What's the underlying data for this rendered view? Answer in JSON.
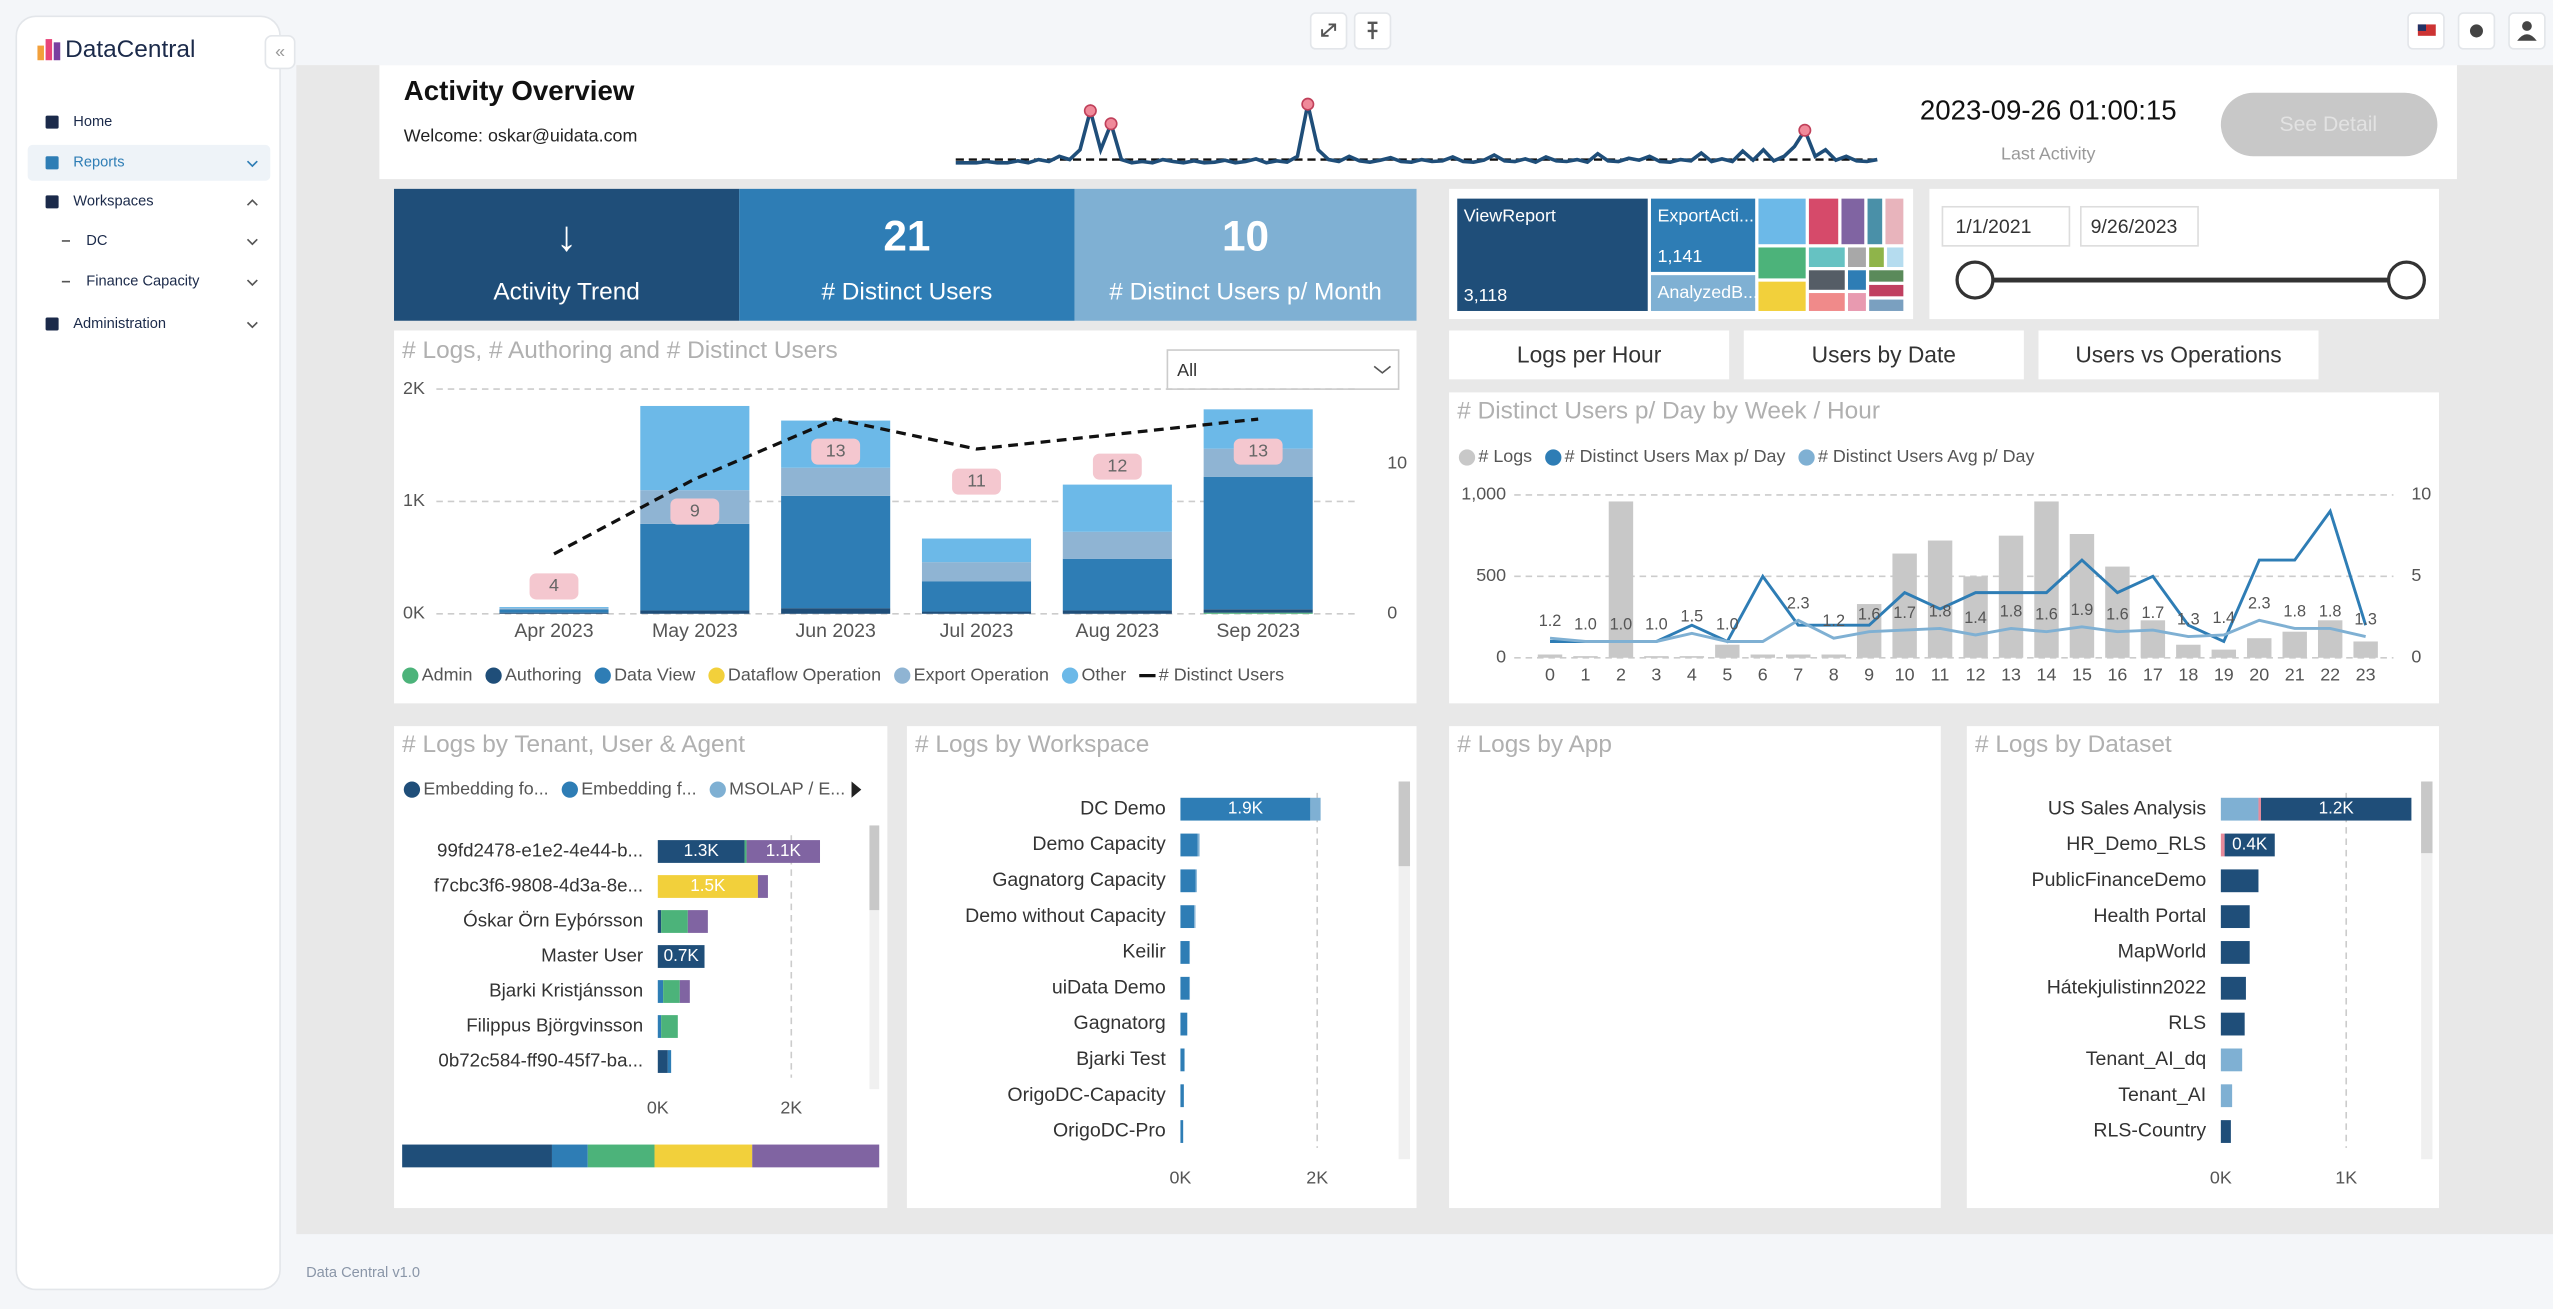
{
  "sidebar": {
    "brand": "DataCentral",
    "nav": [
      "Home",
      "Reports",
      "Workspaces",
      "DC",
      "Finance Capacity",
      "Administration"
    ]
  },
  "footer": "Data Central v1.0",
  "header": {
    "title": "Activity Overview",
    "welcome": "Welcome: oskar@uidata.com",
    "last_activity": "2023-09-26 01:00:15",
    "last_activity_label": "Last Activity",
    "button": "See Detail"
  },
  "activity_sparkline": {
    "type": "line",
    "color": "#1f4e79",
    "values": [
      1,
      1,
      1,
      1.2,
      1,
      1,
      1.3,
      1,
      1.5,
      1.2,
      2,
      1.5,
      3,
      9,
      3,
      7,
      1.5,
      1,
      1.2,
      1,
      1.5,
      1.2,
      1,
      1.3,
      1,
      1.1,
      1.4,
      1,
      1.2,
      1.6,
      1,
      1.3,
      1.1,
      2,
      10,
      3,
      1.5,
      1.2,
      2,
      1.3,
      1.1,
      1.4,
      1.8,
      1.2,
      1.1,
      1.5,
      1.2,
      1.3,
      1.9,
      1.2,
      1.1,
      1.4,
      2.2,
      1.3,
      1.2,
      1.6,
      1.1,
      1.9,
      1.3,
      1.2,
      1.5,
      1.1,
      2.4,
      1.3,
      1.2,
      1.7,
      1.4,
      2,
      1.2,
      1.1,
      1.5,
      1.3,
      2.5,
      1.2,
      1.6,
      1.2,
      2.8,
      1.4,
      3,
      1.3,
      2,
      3.5,
      6,
      2,
      3,
      1.4,
      2,
      1.3,
      1.2,
      1.5
    ]
  },
  "kpis": [
    {
      "value": "↓",
      "label": "Activity Trend"
    },
    {
      "value": 21,
      "label": "# Distinct Users"
    },
    {
      "value": 10,
      "label": "# Distinct Users p/ Month"
    }
  ],
  "treemap": {
    "labels": [
      "ViewReport",
      "ExportActi...",
      "AnalyzedB..."
    ],
    "values": [
      3118,
      1141,
      500
    ],
    "value_labels": [
      "3,118",
      "1,141",
      null
    ]
  },
  "date_slicer": {
    "start": "1/1/2021",
    "end": "9/26/2023"
  },
  "tabs": [
    "Logs per Hour",
    "Users by Date",
    "Users vs Operations"
  ],
  "logs_by_month": {
    "type": "bar",
    "stacked": true,
    "title": "# Logs, # Authoring and # Distinct Users",
    "filter": "All",
    "categories": [
      "Apr 2023",
      "May 2023",
      "Jun 2023",
      "Jul 2023",
      "Aug 2023",
      "Sep 2023"
    ],
    "series": [
      {
        "name": "Admin",
        "color": "#4cb37a",
        "values": [
          0,
          0,
          0,
          0,
          0,
          10
        ]
      },
      {
        "name": "Authoring",
        "color": "#1f4e79",
        "values": [
          10,
          30,
          50,
          20,
          30,
          30
        ]
      },
      {
        "name": "Data View",
        "color": "#2e7db5",
        "values": [
          30,
          770,
          1000,
          270,
          460,
          1180
        ]
      },
      {
        "name": "Dataflow Operation",
        "color": "#f2d03b",
        "values": [
          0,
          0,
          0,
          0,
          0,
          0
        ]
      },
      {
        "name": "Export Operation",
        "color": "#8fb4d3",
        "values": [
          10,
          300,
          250,
          170,
          240,
          250
        ]
      },
      {
        "name": "Other",
        "color": "#6cb9e8",
        "values": [
          10,
          750,
          420,
          210,
          420,
          350
        ]
      },
      {
        "name": "# Distinct Users",
        "color": "#111111",
        "axis": "y2",
        "values": [
          4,
          9,
          13,
          11,
          12,
          13
        ]
      }
    ],
    "ylim": [
      0,
      2000
    ],
    "yticks": [
      {
        "value": 0,
        "label": "0K"
      },
      {
        "value": 1000,
        "label": "1K"
      },
      {
        "value": 2000,
        "label": "2K"
      }
    ],
    "y2lim": [
      0,
      15
    ],
    "y2ticks": [
      0,
      10
    ],
    "grid": true
  },
  "hourly": {
    "type": "bar",
    "title": "# Distinct Users p/ Day by Week / Hour",
    "categories": [
      "0",
      "1",
      "2",
      "3",
      "4",
      "5",
      "6",
      "7",
      "8",
      "9",
      "10",
      "11",
      "12",
      "13",
      "14",
      "15",
      "16",
      "17",
      "18",
      "19",
      "20",
      "21",
      "22",
      "23"
    ],
    "series": [
      {
        "name": "# Logs",
        "color": "#c8c8c8",
        "values": [
          20,
          10,
          960,
          10,
          10,
          80,
          20,
          20,
          20,
          330,
          640,
          720,
          500,
          750,
          960,
          760,
          560,
          230,
          80,
          50,
          120,
          160,
          230,
          100
        ]
      },
      {
        "name": "# Distinct Users Max p/ Day",
        "color": "#2e7db5",
        "axis": "y2",
        "values": [
          1,
          1,
          1,
          1,
          2,
          1,
          5,
          2,
          2,
          2,
          4,
          3,
          4,
          4,
          4,
          6,
          4,
          5,
          2,
          1,
          6,
          6,
          9,
          2
        ]
      },
      {
        "name": "# Distinct Users Avg p/ Day",
        "color": "#7fb0d3",
        "axis": "y2",
        "values": [
          1.2,
          1,
          1,
          1,
          1.5,
          1,
          1,
          2.3,
          1.2,
          1.6,
          1.7,
          1.8,
          1.4,
          1.8,
          1.6,
          1.9,
          1.6,
          1.7,
          1.3,
          1.4,
          2.3,
          1.8,
          1.8,
          1.3
        ],
        "value_labels": [
          "1.2",
          "1.0",
          "1.0",
          "1.0",
          "1.5",
          "1.0",
          null,
          "2.3",
          "1.2",
          "1.6",
          "1.7",
          "1.8",
          "1.4",
          "1.8",
          "1.6",
          "1.9",
          "1.6",
          "1.7",
          "1.3",
          "1.4",
          "2.3",
          "1.8",
          "1.8",
          "1.3"
        ]
      }
    ],
    "ylim": [
      0,
      1000
    ],
    "yticks": [
      0,
      500,
      {
        "value": 1000,
        "label": "1,000"
      }
    ],
    "y2lim": [
      0,
      10
    ],
    "y2ticks": [
      0,
      5,
      10
    ],
    "grid": true
  },
  "logs_by_tenant": {
    "type": "bar",
    "orientation": "horizontal",
    "stacked": true,
    "title": "# Logs by Tenant, User & Agent",
    "categories": [
      "99fd2478-e1e2-4e44-b...",
      "f7cbc3f6-9808-4d3a-8e...",
      "Óskar Örn Eyþórsson",
      "Master User",
      "Bjarki Kristjánsson",
      "Filippus Björgvinsson",
      "0b72c584-ff90-45f7-ba..."
    ],
    "series": [
      {
        "name": "Embedding fo...",
        "color": "#1f4e79",
        "values": [
          1300,
          0,
          50,
          700,
          0,
          0,
          150
        ],
        "value_labels": [
          "1.3K",
          null,
          null,
          "0.7K",
          null,
          null,
          null
        ]
      },
      {
        "name": "Embedding f...",
        "color": "#2e7db5",
        "values": [
          0,
          0,
          0,
          0,
          80,
          50,
          50
        ]
      },
      {
        "name": "MSOLAP / E...",
        "color": "#7fb0d3",
        "values": [
          0,
          0,
          0,
          0,
          0,
          0,
          0
        ]
      },
      {
        "color": "#4cb37a",
        "values": [
          30,
          0,
          400,
          0,
          250,
          250,
          0
        ]
      },
      {
        "color": "#f2d03b",
        "values": [
          0,
          1500,
          0,
          0,
          0,
          0,
          0
        ],
        "value_labels": [
          null,
          "1.5K",
          null,
          null,
          null,
          null,
          null
        ]
      },
      {
        "color": "#8064a2",
        "values": [
          1100,
          150,
          300,
          0,
          150,
          0,
          0
        ],
        "value_labels": [
          "1.1K",
          null,
          null,
          null,
          null,
          null,
          null
        ]
      }
    ],
    "xlim": [
      0,
      3200
    ],
    "xticks": [
      {
        "value": 0,
        "label": "0K"
      },
      {
        "value": 2000,
        "label": "2K"
      }
    ],
    "grid": true
  },
  "logs_by_workspace": {
    "type": "bar",
    "orientation": "horizontal",
    "stacked": true,
    "title": "# Logs by Workspace",
    "categories": [
      "DC Demo",
      "Demo Capacity",
      "Gagnatorg Capacity",
      "Demo without Capacity",
      "Keilir",
      "uiData Demo",
      "Gagnatorg",
      "Bjarki Test",
      "OrigoDC-Capacity",
      "OrigoDC-Pro"
    ],
    "series": [
      {
        "color": "#2e7db5",
        "values": [
          1900,
          250,
          220,
          200,
          130,
          130,
          100,
          60,
          50,
          40
        ],
        "value_labels": [
          "1.9K",
          null,
          null,
          null,
          null,
          null,
          null,
          null,
          null,
          null
        ]
      },
      {
        "color": "#7fb0d3",
        "values": [
          150,
          30,
          20,
          20,
          10,
          10,
          0,
          0,
          0,
          0
        ]
      }
    ],
    "xlim": [
      0,
      3100
    ],
    "xticks": [
      {
        "value": 0,
        "label": "0K"
      },
      {
        "value": 2000,
        "label": "2K"
      }
    ],
    "grid": true
  },
  "logs_by_app": {
    "title": "# Logs by App"
  },
  "logs_by_dataset": {
    "type": "bar",
    "orientation": "horizontal",
    "stacked": true,
    "title": "# Logs by Dataset",
    "categories": [
      "US Sales Analysis",
      "HR_Demo_RLS",
      "PublicFinanceDemo",
      "Health Portal",
      "MapWorld",
      "Hátekjulistinn2022",
      "RLS",
      "Tenant_AI_dq",
      "Tenant_AI",
      "RLS-Country"
    ],
    "series": [
      {
        "color": "#7fb0d3",
        "values": [
          300,
          0,
          0,
          0,
          0,
          0,
          0,
          170,
          90,
          0
        ]
      },
      {
        "color": "#e88a9a",
        "values": [
          20,
          30,
          0,
          0,
          0,
          0,
          0,
          0,
          0,
          0
        ]
      },
      {
        "color": "#1f4e79",
        "values": [
          1200,
          400,
          300,
          230,
          230,
          200,
          190,
          0,
          0,
          80
        ],
        "value_labels": [
          "1.2K",
          "0.4K",
          null,
          null,
          null,
          null,
          null,
          null,
          null,
          null
        ]
      }
    ],
    "xlim": [
      0,
      1600
    ],
    "xticks": [
      {
        "value": 0,
        "label": "0K"
      },
      {
        "value": 1000,
        "label": "1K"
      }
    ],
    "grid": true
  }
}
